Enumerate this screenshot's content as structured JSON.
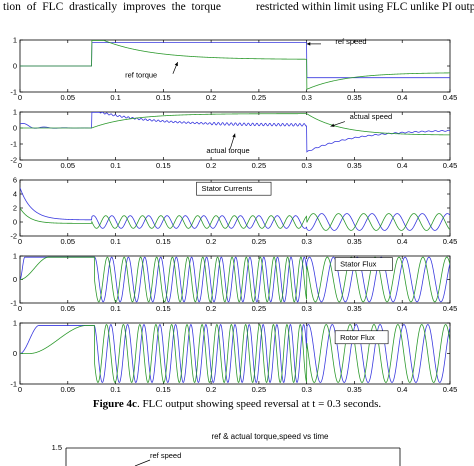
{
  "header": {
    "left_text": "tion of FLC drastically improves the torque",
    "right_text": "restricted within limit using FLC unlike PI outp"
  },
  "caption": {
    "label": "Figure 4c",
    "text": ". FLC output showing speed reversal at t = 0.3 seconds."
  },
  "next_figure": {
    "title": "ref & actual torque,speed vs time",
    "ytick": "1.5",
    "annotation": "ref speed"
  },
  "chart_data": [
    {
      "type": "line",
      "panel": 1,
      "xlim": [
        0,
        0.45
      ],
      "ylim": [
        -1,
        1
      ],
      "xticks": [
        "0",
        "0.05",
        "0.1",
        "0.15",
        "0.2",
        "0.25",
        "0.3",
        "0.35",
        "0.4",
        "0.45"
      ],
      "yticks": [
        "-1",
        "0",
        "1"
      ],
      "annotations": [
        "ref speed",
        "ref torque"
      ],
      "series": [
        {
          "color": "#3a3adf",
          "kind": "ref_speed"
        },
        {
          "color": "#2e9a2e",
          "kind": "ref_torque"
        }
      ]
    },
    {
      "type": "line",
      "panel": 2,
      "xlim": [
        0,
        0.45
      ],
      "ylim": [
        -2,
        1
      ],
      "xticks": [
        "0",
        "0.05",
        "0.1",
        "0.15",
        "0.2",
        "0.25",
        "0.3",
        "0.35",
        "0.4",
        "0.45"
      ],
      "yticks": [
        "-2",
        "-1",
        "0",
        "1"
      ],
      "annotations": [
        "actual speed",
        "actual torque"
      ],
      "series": [
        {
          "color": "#3a3adf",
          "kind": "actual_torque"
        },
        {
          "color": "#2e9a2e",
          "kind": "actual_speed"
        }
      ]
    },
    {
      "type": "line",
      "panel": 3,
      "xlim": [
        0,
        0.45
      ],
      "ylim": [
        -2,
        6
      ],
      "xticks": [
        "0",
        "0.05",
        "0.1",
        "0.15",
        "0.2",
        "0.25",
        "0.3",
        "0.35",
        "0.4",
        "0.45"
      ],
      "yticks": [
        "-2",
        "0",
        "2",
        "4",
        "6"
      ],
      "annotations": [
        "Stator Currents"
      ],
      "series": [
        {
          "color": "#3a3adf",
          "kind": "current_a"
        },
        {
          "color": "#2e9a2e",
          "kind": "current_b"
        }
      ]
    },
    {
      "type": "line",
      "panel": 4,
      "xlim": [
        0,
        0.45
      ],
      "ylim": [
        -1,
        1
      ],
      "xticks": [
        "0",
        "0.05",
        "0.1",
        "0.15",
        "0.2",
        "0.25",
        "0.3",
        "0.35",
        "0.4",
        "0.45"
      ],
      "yticks": [
        "-1",
        "0",
        "1"
      ],
      "annotations": [
        "Stator Flux"
      ],
      "series": [
        {
          "color": "#3a3adf",
          "kind": "flux_a"
        },
        {
          "color": "#2e9a2e",
          "kind": "flux_b"
        }
      ]
    },
    {
      "type": "line",
      "panel": 5,
      "xlim": [
        0,
        0.45
      ],
      "ylim": [
        -1,
        1
      ],
      "xticks": [
        "0",
        "0.05",
        "0.1",
        "0.15",
        "0.2",
        "0.25",
        "0.3",
        "0.35",
        "0.4",
        "0.45"
      ],
      "yticks": [
        "-1",
        "0",
        "1"
      ],
      "annotations": [
        "Rotor Flux"
      ],
      "series": [
        {
          "color": "#3a3adf",
          "kind": "rflux_a"
        },
        {
          "color": "#2e9a2e",
          "kind": "rflux_b"
        }
      ]
    }
  ]
}
